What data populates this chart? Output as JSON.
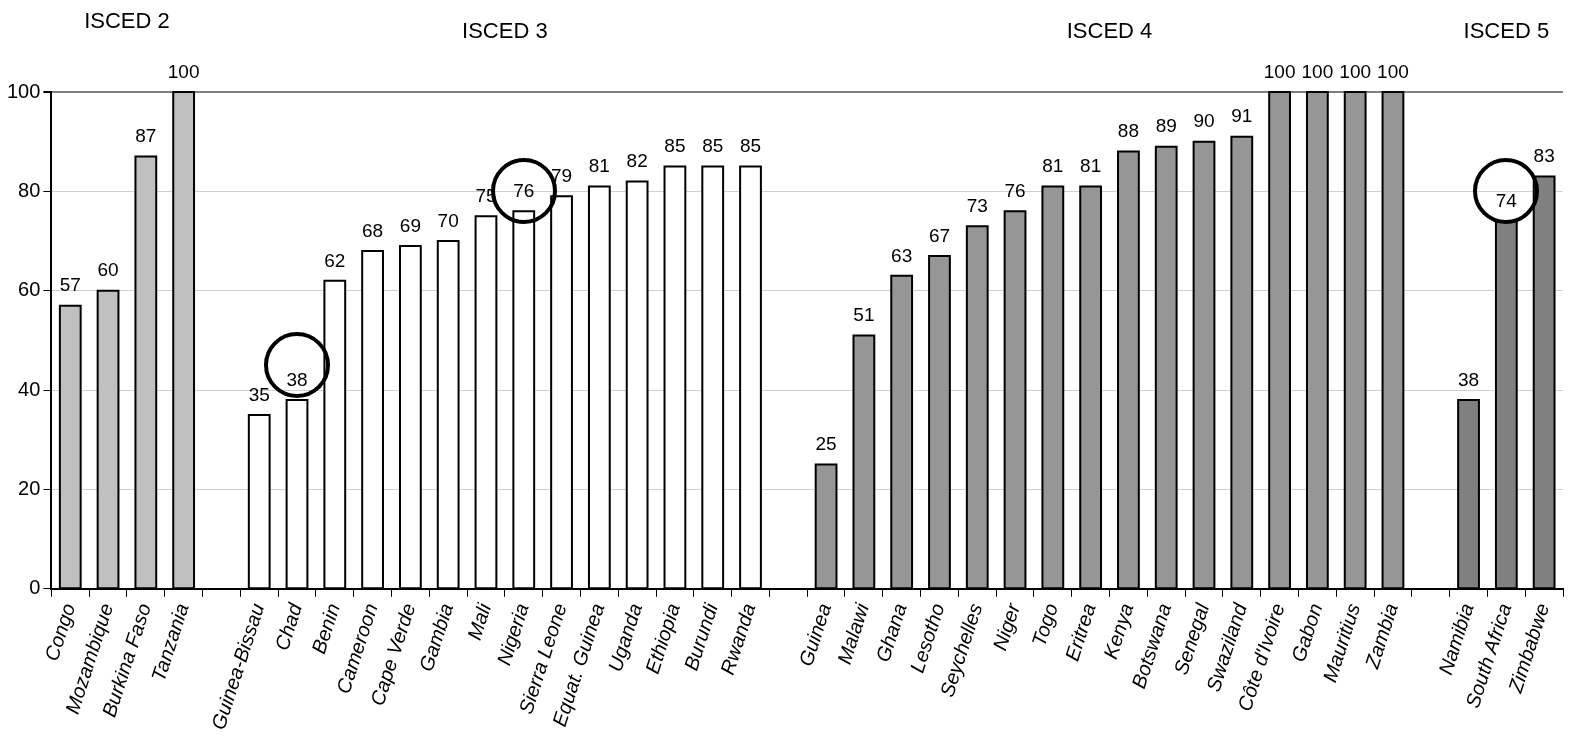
{
  "chart_data": {
    "type": "bar",
    "categories": [
      "Congo",
      "Mozambique",
      "Burkina Faso",
      "Tanzania",
      null,
      "Guinea-Bissau",
      "Chad",
      "Benin",
      "Cameroon",
      "Cape Verde",
      "Gambia",
      "Mali",
      "Nigeria",
      "Sierra Leone",
      "Equat. Guinea",
      "Uganda",
      "Ethiopia",
      "Burundi",
      "Rwanda",
      null,
      "Guinea",
      "Malawi",
      "Ghana",
      "Lesotho",
      "Seychelles",
      "Niger",
      "Togo",
      "Eritrea",
      "Kenya",
      "Botswana",
      "Senegal",
      "Swaziland",
      "Côte d'Ivoire",
      "Gabon",
      "Mauritius",
      "Zambia",
      null,
      "Namibia",
      "South Africa",
      "Zimbabwe"
    ],
    "values": [
      57,
      60,
      87,
      100,
      null,
      35,
      38,
      62,
      68,
      69,
      70,
      75,
      76,
      79,
      81,
      82,
      85,
      85,
      85,
      null,
      25,
      51,
      63,
      67,
      73,
      76,
      81,
      81,
      88,
      89,
      90,
      91,
      100,
      100,
      100,
      100,
      null,
      38,
      74,
      83
    ],
    "colors": [
      "#c0c0c0",
      "#c0c0c0",
      "#c0c0c0",
      "#c0c0c0",
      "#ffffff",
      "#ffffff",
      "#ffffff",
      "#ffffff",
      "#ffffff",
      "#ffffff",
      "#ffffff",
      "#ffffff",
      "#ffffff",
      "#ffffff",
      "#ffffff",
      "#ffffff",
      "#ffffff",
      "#ffffff",
      "#ffffff",
      "#ffffff",
      "#969696",
      "#969696",
      "#969696",
      "#969696",
      "#969696",
      "#969696",
      "#969696",
      "#969696",
      "#969696",
      "#969696",
      "#969696",
      "#969696",
      "#969696",
      "#969696",
      "#969696",
      "#969696",
      "#808080",
      "#808080",
      "#808080",
      "#808080"
    ],
    "ylim": [
      0,
      100
    ],
    "yticks": [
      0,
      20,
      40,
      60,
      80,
      100
    ],
    "grid": "y",
    "legend": false,
    "data_labels": true,
    "annotations": [
      "ISCED 2",
      "ISCED 3",
      "ISCED 4",
      "ISCED 5"
    ]
  }
}
